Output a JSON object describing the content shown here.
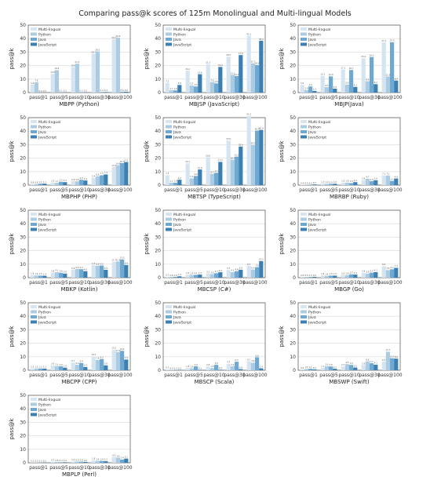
{
  "figure_title": "Comparing pass@k scores of 125m Monolingual and Multi-lingual Models",
  "ylabel": "pass@k",
  "legend": [
    "Multi-lingual",
    "Python",
    "Java",
    "JavaScript"
  ],
  "colors": [
    "#d5e4f1",
    "#aacbe2",
    "#6fa9d2",
    "#3b7fb3"
  ],
  "chart_data": [
    {
      "type": "bar",
      "title": "MBPP (Python)",
      "categories": [
        "pass@1",
        "pass@5",
        "pass@10",
        "pass@30",
        "pass@100"
      ],
      "ylim": [
        0,
        50
      ],
      "yticks": [
        0,
        10,
        20,
        30,
        40,
        50
      ],
      "series": [
        {
          "name": "Multi-lingual",
          "values": [
            5.8,
            13.8,
            18.9,
            28.7,
            39.4
          ]
        },
        {
          "name": "Python",
          "values": [
            7.6,
            16.6,
            21.4,
            30.5,
            40.6
          ]
        },
        {
          "name": "Java",
          "values": [
            0.0,
            0.1,
            0.2,
            0.4,
            0.6
          ]
        },
        {
          "name": "JavaScript",
          "values": [
            0.0,
            0.1,
            0.2,
            0.4,
            0.6
          ]
        }
      ]
    },
    {
      "type": "bar",
      "title": "MBJSP (JavaScript)",
      "categories": [
        "pass@1",
        "pass@5",
        "pass@10",
        "pass@30",
        "pass@100"
      ],
      "ylim": [
        0,
        50
      ],
      "yticks": [
        0,
        10,
        20,
        30,
        40,
        50
      ],
      "series": [
        {
          "name": "Multi-lingual",
          "values": [
            7.2,
            16.2,
            21.1,
            26.5,
            42.1
          ]
        },
        {
          "name": "Python",
          "values": [
            1.7,
            5.3,
            7.8,
            13.1,
            21.7
          ]
        },
        {
          "name": "Java",
          "values": [
            1.6,
            4.5,
            6.8,
            12.2,
            20.4
          ]
        },
        {
          "name": "JavaScript",
          "values": [
            5.6,
            13.6,
            19.0,
            27.8,
            38.4
          ]
        }
      ]
    },
    {
      "type": "bar",
      "title": "MBJP(Java)",
      "categories": [
        "pass@1",
        "pass@5",
        "pass@10",
        "pass@30",
        "pass@100"
      ],
      "ylim": [
        0,
        50
      ],
      "yticks": [
        0,
        10,
        20,
        30,
        40,
        50
      ],
      "series": [
        {
          "name": "Multi-lingual",
          "values": [
            5.6,
            12.3,
            17.1,
            25.4,
            37.1
          ]
        },
        {
          "name": "Python",
          "values": [
            1.9,
            4.0,
            5.9,
            8.4,
            11.9
          ]
        },
        {
          "name": "Java",
          "values": [
            4.5,
            12.0,
            16.7,
            26.3,
            37.3
          ]
        },
        {
          "name": "JavaScript",
          "values": [
            1.2,
            2.9,
            4.2,
            6.2,
            8.9
          ]
        }
      ]
    },
    {
      "type": "bar",
      "title": "MBPHP (PHP)",
      "categories": [
        "pass@1",
        "pass@5",
        "pass@10",
        "pass@30",
        "pass@100"
      ],
      "ylim": [
        0,
        50
      ],
      "yticks": [
        0,
        10,
        20,
        30,
        40,
        50
      ],
      "series": [
        {
          "name": "Multi-lingual",
          "values": [
            0.8,
            1.9,
            2.9,
            5.4,
            13.4
          ]
        },
        {
          "name": "Python",
          "values": [
            0.8,
            1.7,
            2.8,
            6.6,
            14.8
          ]
        },
        {
          "name": "Java",
          "values": [
            1.1,
            2.5,
            4.0,
            7.3,
            16.3
          ]
        },
        {
          "name": "JavaScript",
          "values": [
            1.1,
            2.2,
            3.4,
            7.9,
            17.1
          ]
        }
      ]
    },
    {
      "type": "bar",
      "title": "MBTSP (TypeScript)",
      "categories": [
        "pass@1",
        "pass@5",
        "pass@10",
        "pass@30",
        "pass@100"
      ],
      "ylim": [
        0,
        50
      ],
      "yticks": [
        0,
        10,
        20,
        30,
        40,
        50
      ],
      "series": [
        {
          "name": "Multi-lingual",
          "values": [
            7.3,
            16.1,
            20.6,
            33.0,
            51.3
          ]
        },
        {
          "name": "Python",
          "values": [
            1.7,
            5.0,
            8.3,
            18.9,
            29.7
          ]
        },
        {
          "name": "Java",
          "values": [
            1.8,
            6.8,
            9.1,
            21.1,
            40.4
          ]
        },
        {
          "name": "JavaScript",
          "values": [
            4.0,
            11.6,
            17.2,
            28.6,
            40.9
          ]
        }
      ]
    },
    {
      "type": "bar",
      "title": "MBRBP (Ruby)",
      "categories": [
        "pass@1",
        "pass@5",
        "pass@10",
        "pass@30",
        "pass@100"
      ],
      "ylim": [
        0,
        50
      ],
      "yticks": [
        0,
        10,
        20,
        30,
        40,
        50
      ],
      "series": [
        {
          "name": "Multi-lingual",
          "values": [
            0.3,
            1.3,
            1.8,
            3.6,
            7.1
          ]
        },
        {
          "name": "Python",
          "values": [
            0.3,
            1.0,
            1.8,
            4.7,
            7.1
          ]
        },
        {
          "name": "Java",
          "values": [
            0.2,
            0.9,
            1.5,
            2.9,
            3.1
          ]
        },
        {
          "name": "JavaScript",
          "values": [
            0.5,
            1.0,
            2.2,
            3.6,
            4.9
          ]
        }
      ]
    },
    {
      "type": "bar",
      "title": "MBKP (Kotlin)",
      "categories": [
        "pass@1",
        "pass@5",
        "pass@10",
        "pass@30",
        "pass@100"
      ],
      "ylim": [
        0,
        50
      ],
      "yticks": [
        0,
        10,
        20,
        30,
        40,
        50
      ],
      "series": [
        {
          "name": "Multi-lingual",
          "values": [
            1.8,
            3.8,
            5.8,
            9.3,
            11.7
          ]
        },
        {
          "name": "Python",
          "values": [
            1.6,
            4.1,
            6.4,
            8.8,
            11.9
          ]
        },
        {
          "name": "Java",
          "values": [
            1.5,
            3.6,
            6.3,
            9.0,
            13.5
          ]
        },
        {
          "name": "JavaScript",
          "values": [
            1.4,
            3.0,
            4.8,
            5.8,
            9.4
          ]
        }
      ]
    },
    {
      "type": "bar",
      "title": "MBCSP (C#)",
      "categories": [
        "pass@1",
        "pass@5",
        "pass@10",
        "pass@30",
        "pass@100"
      ],
      "ylim": [
        0,
        50
      ],
      "yticks": [
        0,
        10,
        20,
        30,
        40,
        50
      ],
      "series": [
        {
          "name": "Multi-lingual",
          "values": [
            0.7,
            2.2,
            3.2,
            5.7,
            8.7
          ]
        },
        {
          "name": "Python",
          "values": [
            0.6,
            2.0,
            2.6,
            4.1,
            6.0
          ]
        },
        {
          "name": "Java",
          "values": [
            0.6,
            2.1,
            3.3,
            4.8,
            7.8
          ]
        },
        {
          "name": "JavaScript",
          "values": [
            1.0,
            2.3,
            4.0,
            5.9,
            12.3
          ]
        }
      ]
    },
    {
      "type": "bar",
      "title": "MBGP (Go)",
      "categories": [
        "pass@1",
        "pass@5",
        "pass@10",
        "pass@30",
        "pass@100"
      ],
      "ylim": [
        0,
        50
      ],
      "yticks": [
        0,
        10,
        20,
        30,
        40,
        50
      ],
      "series": [
        {
          "name": "Multi-lingual",
          "values": [
            0.6,
            1.6,
            2.0,
            3.6,
            8.5
          ]
        },
        {
          "name": "Python",
          "values": [
            0.5,
            1.4,
            1.9,
            3.0,
            5.6
          ]
        },
        {
          "name": "Java",
          "values": [
            0.5,
            1.5,
            2.5,
            3.7,
            6.2
          ]
        },
        {
          "name": "JavaScript",
          "values": [
            0.6,
            1.5,
            2.3,
            4.1,
            7.3
          ]
        }
      ]
    },
    {
      "type": "bar",
      "title": "MBCPP (CPP)",
      "categories": [
        "pass@1",
        "pass@5",
        "pass@10",
        "pass@30",
        "pass@100"
      ],
      "ylim": [
        0,
        50
      ],
      "yticks": [
        0,
        10,
        20,
        30,
        40,
        50
      ],
      "series": [
        {
          "name": "Multi-lingual",
          "values": [
            1.4,
            3.6,
            5.7,
            10.3,
            15.2
          ]
        },
        {
          "name": "Python",
          "values": [
            1.3,
            3.1,
            4.0,
            7.6,
            13.4
          ]
        },
        {
          "name": "Java",
          "values": [
            1.3,
            2.9,
            5.4,
            8.3,
            14.4
          ]
        },
        {
          "name": "JavaScript",
          "values": [
            1.2,
            1.9,
            2.4,
            3.6,
            7.9
          ]
        }
      ]
    },
    {
      "type": "bar",
      "title": "MBSCP (Scala)",
      "categories": [
        "pass@1",
        "pass@5",
        "pass@10",
        "pass@30",
        "pass@100"
      ],
      "ylim": [
        0,
        50
      ],
      "yticks": [
        0,
        10,
        20,
        30,
        40,
        50
      ],
      "series": [
        {
          "name": "Multi-lingual",
          "values": [
            0.7,
            1.6,
            2.8,
            4.7,
            6.7
          ]
        },
        {
          "name": "Python",
          "values": [
            0.3,
            1.4,
            1.6,
            2.9,
            5.6
          ]
        },
        {
          "name": "Java",
          "values": [
            0.3,
            2.9,
            4.0,
            6.3,
            9.6
          ]
        },
        {
          "name": "JavaScript",
          "values": [
            0.3,
            0.3,
            0.4,
            0.8,
            1.4
          ]
        }
      ]
    },
    {
      "type": "bar",
      "title": "MBSWP (Swift)",
      "categories": [
        "pass@1",
        "pass@5",
        "pass@10",
        "pass@30",
        "pass@100"
      ],
      "ylim": [
        0,
        50
      ],
      "yticks": [
        0,
        10,
        20,
        30,
        40,
        50
      ],
      "series": [
        {
          "name": "Multi-lingual",
          "values": [
            0.6,
            1.7,
            2.7,
            3.8,
            6.3
          ]
        },
        {
          "name": "Python",
          "values": [
            1.0,
            3.0,
            4.5,
            6.6,
            13.7
          ]
        },
        {
          "name": "Java",
          "values": [
            1.1,
            2.8,
            3.9,
            5.2,
            8.9
          ]
        },
        {
          "name": "JavaScript",
          "values": [
            0.6,
            1.1,
            2.0,
            4.1,
            8.6
          ]
        }
      ]
    },
    {
      "type": "bar",
      "title": "MBPLP (Perl)",
      "categories": [
        "pass@1",
        "pass@5",
        "pass@10",
        "pass@30",
        "pass@100"
      ],
      "ylim": [
        0,
        50
      ],
      "yticks": [
        0,
        10,
        20,
        30,
        40,
        50
      ],
      "series": [
        {
          "name": "Multi-lingual",
          "values": [
            0.2,
            0.7,
            1.0,
            1.8,
            4.3
          ]
        },
        {
          "name": "Python",
          "values": [
            0.2,
            0.6,
            0.9,
            1.4,
            3.8
          ]
        },
        {
          "name": "Java",
          "values": [
            0.2,
            0.4,
            0.8,
            1.4,
            2.4
          ]
        },
        {
          "name": "JavaScript",
          "values": [
            0.2,
            0.4,
            0.6,
            1.2,
            3.1
          ]
        }
      ]
    }
  ]
}
